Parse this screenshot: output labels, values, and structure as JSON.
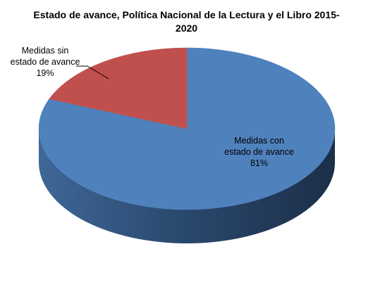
{
  "chart_data": {
    "type": "pie",
    "title_line1": "Estado de avance, Política Nacional de la Lectura y el Libro 2015-",
    "title_line2": "2020",
    "slices": [
      {
        "label_line1": "Medidas con",
        "label_line2": "estado de avance",
        "percent_text": "81%",
        "value": 81,
        "color": "#4F81BD",
        "side_color": "#2A4566"
      },
      {
        "label_line1": "Medidas sin",
        "label_line2": "estado de avance",
        "percent_text": "19%",
        "value": 19,
        "color": "#C0504D",
        "side_color": "#7A2D2B"
      }
    ],
    "legend": "none",
    "style": "3d"
  }
}
